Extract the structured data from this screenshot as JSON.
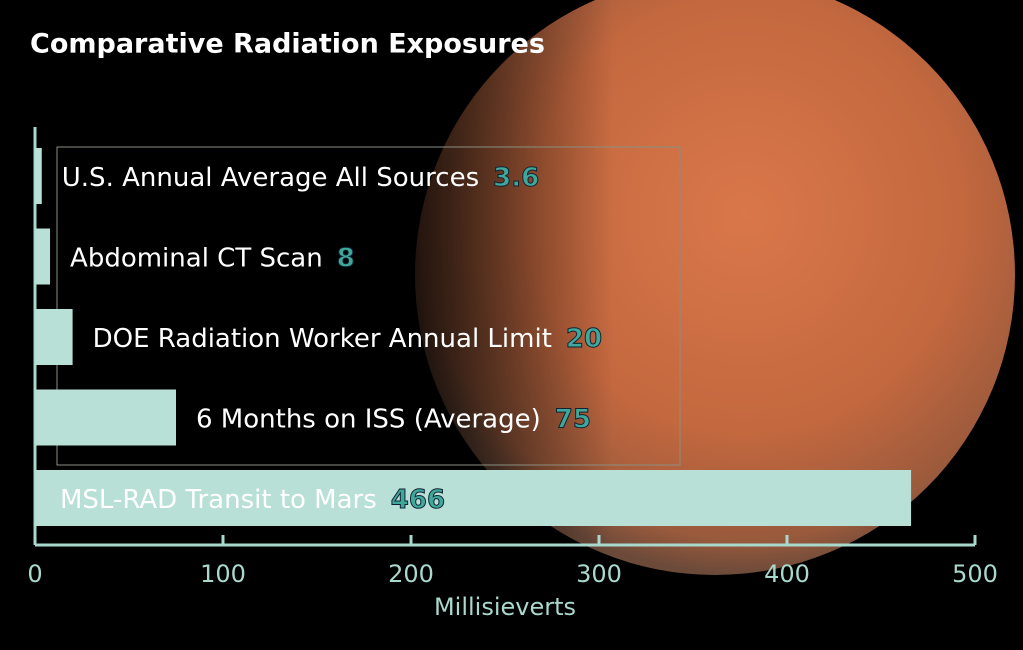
{
  "chart_data": {
    "type": "barh",
    "title": "Comparative Radiation Exposures",
    "categories": [
      "U.S. Annual Average All Sources",
      "Abdominal CT Scan",
      "DOE Radiation Worker Annual Limit",
      "6 Months on ISS (Average)",
      "MSL-RAD Transit to Mars"
    ],
    "values": [
      3.6,
      8,
      20,
      75,
      466
    ],
    "color": "#b8e0d6",
    "value_label_color": "#3fa89a",
    "xlabel": "Millisieverts",
    "xlim": [
      0,
      500
    ],
    "xticks": [
      0,
      100,
      200,
      300,
      400,
      500
    ]
  }
}
